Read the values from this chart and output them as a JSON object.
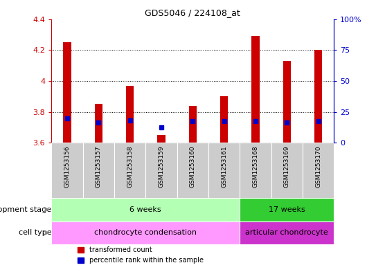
{
  "title": "GDS5046 / 224108_at",
  "samples": [
    "GSM1253156",
    "GSM1253157",
    "GSM1253158",
    "GSM1253159",
    "GSM1253160",
    "GSM1253161",
    "GSM1253168",
    "GSM1253169",
    "GSM1253170"
  ],
  "transformed_counts": [
    4.25,
    3.85,
    3.97,
    3.65,
    3.84,
    3.9,
    4.29,
    4.13,
    4.2
  ],
  "percentile_ranks": [
    3.758,
    3.73,
    3.743,
    3.7,
    3.742,
    3.742,
    3.742,
    3.73,
    3.742
  ],
  "y_min": 3.6,
  "y_max": 4.4,
  "y_ticks": [
    3.6,
    3.8,
    4.0,
    4.2,
    4.4
  ],
  "y_tick_labels": [
    "3.6",
    "3.8",
    "4",
    "4.2",
    "4.4"
  ],
  "right_y_ticks_pct": [
    0,
    25,
    50,
    75,
    100
  ],
  "right_y_labels": [
    "0",
    "25",
    "50",
    "75",
    "100%"
  ],
  "bar_color": "#cc0000",
  "dot_color": "#0000cc",
  "bar_width": 0.25,
  "dot_size": 5,
  "plot_bg": "#ffffff",
  "grid_yticks": [
    3.8,
    4.0,
    4.2
  ],
  "dev_stage_groups": [
    {
      "label": "6 weeks",
      "start": 0,
      "end": 6,
      "color": "#b3ffb3"
    },
    {
      "label": "17 weeks",
      "start": 6,
      "end": 9,
      "color": "#33cc33"
    }
  ],
  "cell_type_groups": [
    {
      "label": "chondrocyte condensation",
      "start": 0,
      "end": 6,
      "color": "#ff99ff"
    },
    {
      "label": "articular chondrocyte",
      "start": 6,
      "end": 9,
      "color": "#cc33cc"
    }
  ],
  "dev_stage_label": "development stage",
  "cell_type_label": "cell type",
  "legend_items": [
    {
      "color": "#cc0000",
      "label": "transformed count"
    },
    {
      "color": "#0000cc",
      "label": "percentile rank within the sample"
    }
  ],
  "left_axis_color": "#cc0000",
  "right_axis_color": "#0000cc",
  "xlabel_gray": "#cccccc",
  "label_arrow_color": "#888888",
  "figsize": [
    5.3,
    3.93
  ],
  "dpi": 100
}
